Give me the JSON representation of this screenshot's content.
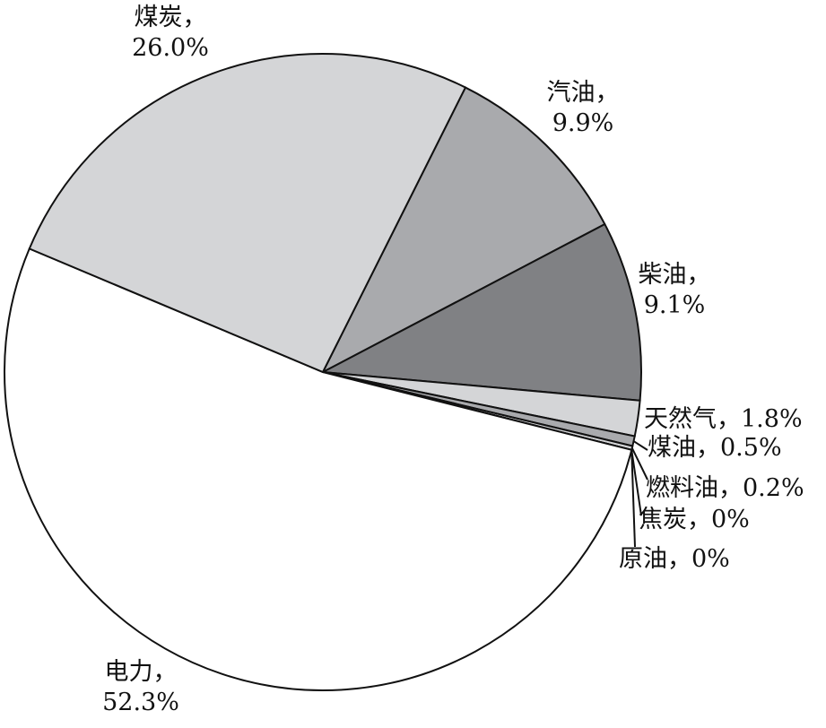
{
  "chart_data": {
    "type": "pie",
    "title": "",
    "slices": [
      {
        "label": "汽油",
        "value": 9.9,
        "display": "9.9%",
        "color": "#a9aaad"
      },
      {
        "label": "柴油",
        "value": 9.1,
        "display": "9.1%",
        "color": "#808184"
      },
      {
        "label": "天然气",
        "value": 1.8,
        "display": "1.8%",
        "color": "#d4d5d7"
      },
      {
        "label": "煤油",
        "value": 0.5,
        "display": "0.5%",
        "color": "#a9aaad"
      },
      {
        "label": "燃料油",
        "value": 0.2,
        "display": "0.2%",
        "color": "#d4d5d7"
      },
      {
        "label": "焦炭",
        "value": 0,
        "display": "0%",
        "color": "#808184"
      },
      {
        "label": "原油",
        "value": 0,
        "display": "0%",
        "color": "#d4d5d7"
      },
      {
        "label": "电力",
        "value": 52.3,
        "display": "52.3%",
        "color": "#ffffff"
      },
      {
        "label": "煤炭",
        "value": 26.0,
        "display": "26.0%",
        "color": "#d4d5d7"
      }
    ],
    "start_angle_deg_clockwise_from_top": 26.6,
    "direction": "clockwise",
    "stroke_color": "#111111"
  }
}
